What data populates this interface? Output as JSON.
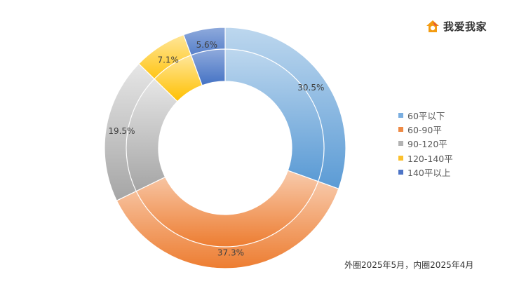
{
  "brand": {
    "name": "我爱我家",
    "icon": "house-logo-icon",
    "colors": [
      "#f39c12",
      "#e74c3c"
    ]
  },
  "footnote": "外圈2025年5月，内圈2025年4月",
  "chart_data": {
    "type": "donut",
    "categories": [
      "60平以下",
      "60-90平",
      "90-120平",
      "120-140平",
      "140平以上"
    ],
    "colors": [
      "#7aaee0",
      "#ee8a45",
      "#b3b3b3",
      "#fbc02d",
      "#4d74c6"
    ],
    "series": [
      {
        "ring": "outer",
        "values": [
          30.5,
          37.3,
          19.5,
          7.1,
          5.6
        ],
        "labels": [
          "30.5%",
          "37.3%",
          "19.5%",
          "7.1%",
          "5.6%"
        ]
      },
      {
        "ring": "inner",
        "values": [
          30.5,
          37.3,
          19.5,
          7.1,
          5.6
        ]
      }
    ],
    "legend_position": "right"
  }
}
